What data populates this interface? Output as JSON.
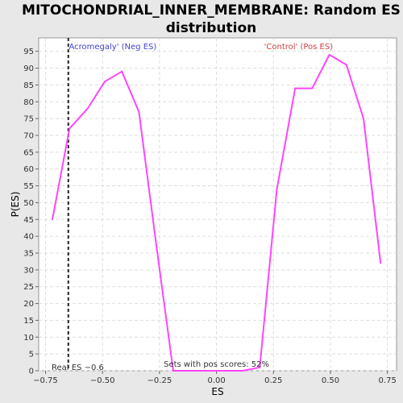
{
  "chart_data": {
    "type": "line",
    "title_line1": "MITOCHONDRIAL_INNER_MEMBRANE: Random ES",
    "title_line2": "distribution",
    "xlabel": "ES",
    "ylabel": "P(ES)",
    "xlim": [
      -0.78,
      0.79
    ],
    "ylim": [
      0,
      99
    ],
    "xticks": [
      -0.75,
      -0.5,
      -0.25,
      0.0,
      0.25,
      0.5,
      0.75
    ],
    "xtick_labels": [
      "−0.75",
      "−0.50",
      "−0.25",
      "0.00",
      "0.25",
      "0.50",
      "0.75"
    ],
    "yticks": [
      0,
      5,
      10,
      15,
      20,
      25,
      30,
      35,
      40,
      45,
      50,
      55,
      60,
      65,
      70,
      75,
      80,
      85,
      90,
      95
    ],
    "grid": true,
    "line_color": "#ff44ff",
    "series": [
      {
        "x": [
          -0.72,
          -0.645,
          -0.565,
          -0.49,
          -0.415,
          -0.34,
          -0.265,
          -0.19,
          -0.12,
          -0.04,
          0.04,
          0.115,
          0.19,
          0.265,
          0.345,
          0.42,
          0.495,
          0.57,
          0.645,
          0.72
        ],
        "y": [
          45,
          72,
          78,
          86,
          89,
          77,
          38,
          0,
          0,
          0,
          0,
          0,
          1,
          54,
          84,
          84,
          94,
          91,
          75,
          32
        ]
      }
    ],
    "real_es": -0.65,
    "real_es_label": "Real ES −0.6",
    "neg_label": "'Acromegaly' (Neg ES)",
    "neg_color": "#4444cc",
    "pos_label": "'Control' (Pos ES)",
    "pos_color": "#cc4444",
    "footer_label": "Sets with pos scores: 52%"
  }
}
